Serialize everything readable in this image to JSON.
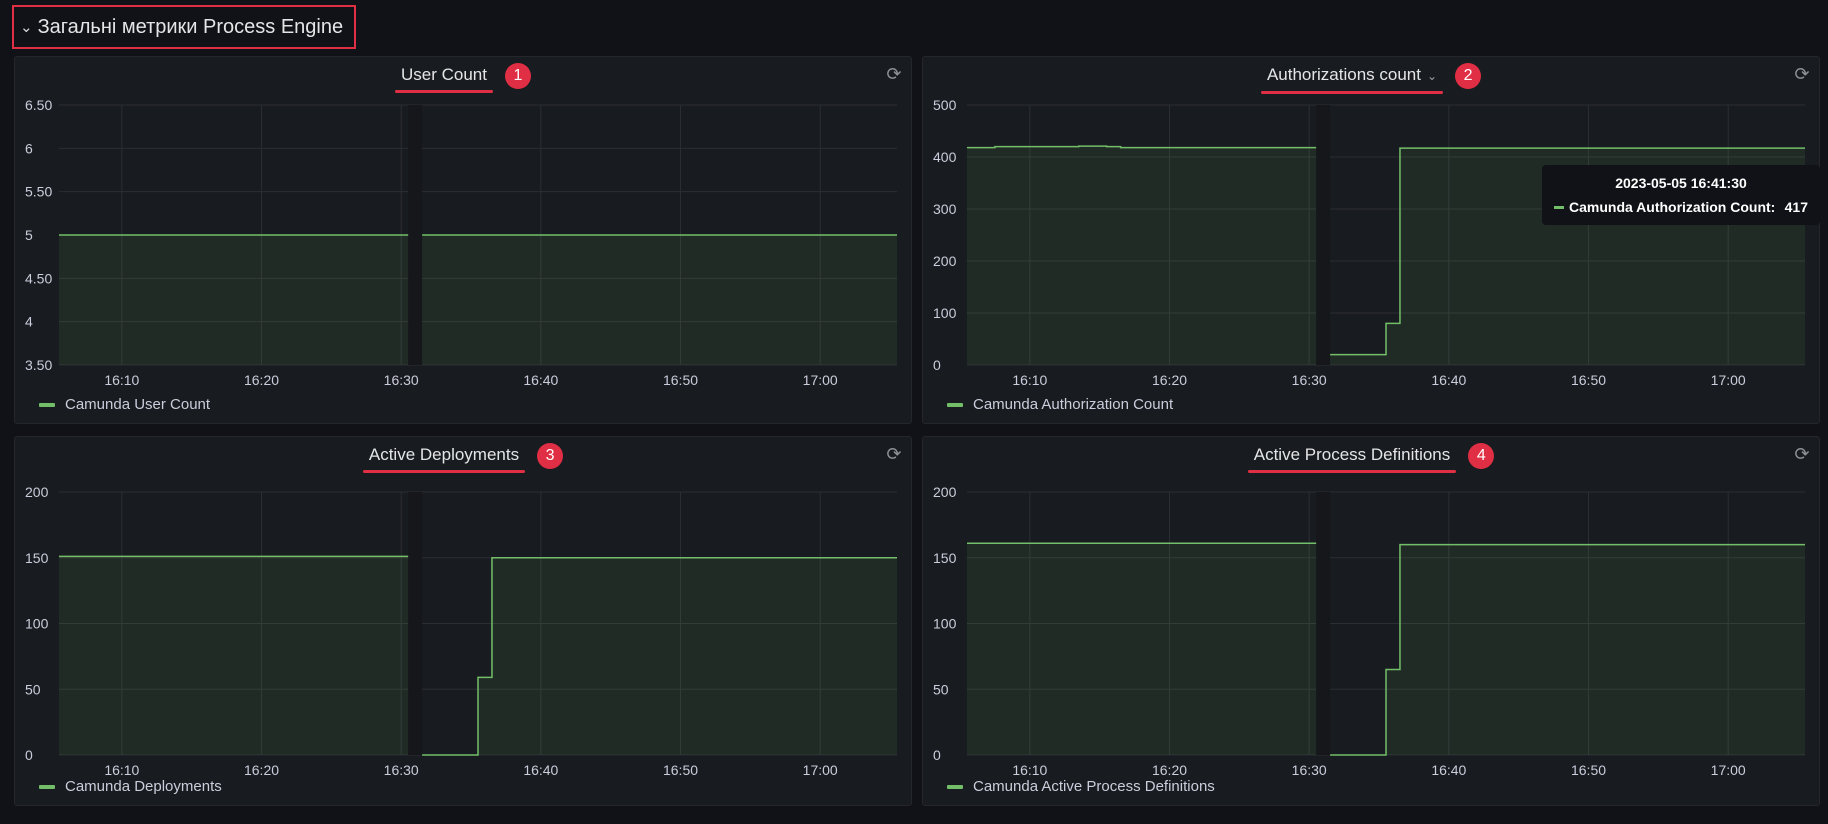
{
  "row": {
    "title": "Загальні метрики Process Engine",
    "collapse_icon": "chevron-down-icon"
  },
  "colors": {
    "series": "#73bf69",
    "annotation": "#e02f44",
    "background": "#111217",
    "panel": "#181b1f"
  },
  "panels": [
    {
      "title": "User Count",
      "badge": "1",
      "legend": "Camunda User Count",
      "y_ticks": [
        "6.50",
        "6",
        "5.50",
        "5",
        "4.50",
        "4",
        "3.50"
      ],
      "x_ticks": [
        "16:10",
        "16:20",
        "16:30",
        "16:40",
        "16:50",
        "17:00"
      ]
    },
    {
      "title": "Authorizations count",
      "badge": "2",
      "legend": "Camunda Authorization Count",
      "dropdown_icon": "chevron-down-icon",
      "y_ticks": [
        "500",
        "400",
        "300",
        "200",
        "100",
        "0"
      ],
      "x_ticks": [
        "16:10",
        "16:20",
        "16:30",
        "16:40",
        "16:50",
        "17:00"
      ],
      "tooltip": {
        "time": "2023-05-05 16:41:30",
        "label": "Camunda Authorization Count:",
        "value": "417"
      }
    },
    {
      "title": "Active Deployments",
      "badge": "3",
      "legend": "Camunda Deployments",
      "y_ticks": [
        "200",
        "150",
        "100",
        "50",
        "0"
      ],
      "x_ticks": [
        "16:10",
        "16:20",
        "16:30",
        "16:40",
        "16:50",
        "17:00"
      ]
    },
    {
      "title": "Active Process Definitions",
      "badge": "4",
      "legend": "Camunda Active Process Definitions",
      "y_ticks": [
        "200",
        "150",
        "100",
        "50",
        "0"
      ],
      "x_ticks": [
        "16:10",
        "16:20",
        "16:30",
        "16:40",
        "16:50",
        "17:00"
      ]
    }
  ],
  "chart_data": [
    {
      "type": "area",
      "title": "User Count",
      "ylim": [
        3.5,
        6.5
      ],
      "xlim": [
        "16:05:30",
        "17:05:30"
      ],
      "grid": true,
      "legend_position": "bottom-left",
      "series": [
        {
          "name": "Camunda User Count",
          "segments": [
            [
              [
                "16:05:30",
                5
              ],
              [
                "16:30:30",
                5
              ]
            ],
            [
              [
                "16:31:30",
                5
              ],
              [
                "17:05:30",
                5
              ]
            ]
          ]
        }
      ]
    },
    {
      "type": "area",
      "title": "Authorizations count",
      "ylim": [
        0,
        500
      ],
      "xlim": [
        "16:05:30",
        "17:05:30"
      ],
      "grid": true,
      "legend_position": "bottom-left",
      "series": [
        {
          "name": "Camunda Authorization Count",
          "segments": [
            [
              [
                "16:05:30",
                418
              ],
              [
                "16:07:30",
                418
              ],
              [
                "16:07:30",
                420
              ],
              [
                "16:13:30",
                420
              ],
              [
                "16:13:30",
                421
              ],
              [
                "16:15:30",
                421
              ],
              [
                "16:15:30",
                420
              ],
              [
                "16:16:30",
                420
              ],
              [
                "16:16:30",
                418
              ],
              [
                "16:30:30",
                418
              ]
            ],
            [
              [
                "16:31:30",
                20
              ],
              [
                "16:35:30",
                20
              ],
              [
                "16:35:30",
                80
              ],
              [
                "16:36:30",
                80
              ],
              [
                "16:36:30",
                417
              ],
              [
                "17:05:30",
                417
              ]
            ]
          ]
        }
      ]
    },
    {
      "type": "area",
      "title": "Active Deployments",
      "ylim": [
        0,
        200
      ],
      "xlim": [
        "16:05:30",
        "17:05:30"
      ],
      "grid": true,
      "legend_position": "bottom-left",
      "series": [
        {
          "name": "Camunda Deployments",
          "segments": [
            [
              [
                "16:05:30",
                151
              ],
              [
                "16:30:30",
                151
              ]
            ],
            [
              [
                "16:31:30",
                0
              ],
              [
                "16:35:30",
                0
              ],
              [
                "16:35:30",
                59
              ],
              [
                "16:36:30",
                59
              ],
              [
                "16:36:30",
                150
              ],
              [
                "17:05:30",
                150
              ]
            ]
          ]
        }
      ]
    },
    {
      "type": "area",
      "title": "Active Process Definitions",
      "ylim": [
        0,
        200
      ],
      "xlim": [
        "16:05:30",
        "17:05:30"
      ],
      "grid": true,
      "legend_position": "bottom-left",
      "series": [
        {
          "name": "Camunda Active Process Definitions",
          "segments": [
            [
              [
                "16:05:30",
                161
              ],
              [
                "16:30:30",
                161
              ]
            ],
            [
              [
                "16:31:30",
                0
              ],
              [
                "16:35:30",
                0
              ],
              [
                "16:35:30",
                65
              ],
              [
                "16:36:30",
                65
              ],
              [
                "16:36:30",
                160
              ],
              [
                "17:05:30",
                160
              ]
            ]
          ]
        }
      ]
    }
  ]
}
